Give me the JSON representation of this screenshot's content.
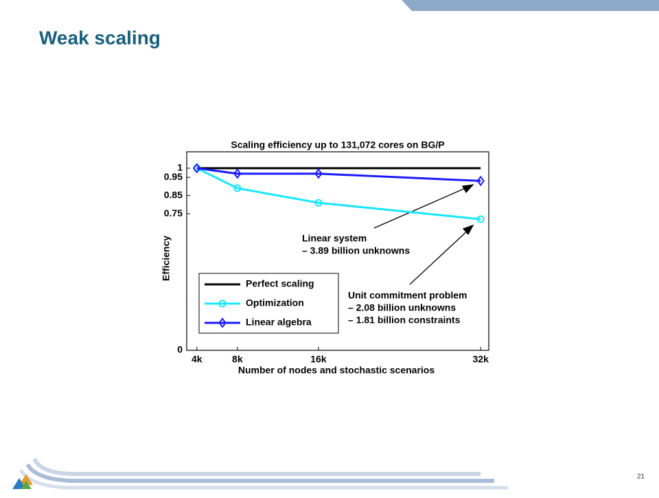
{
  "slide": {
    "title": "Weak scaling",
    "page_number": "21"
  },
  "chart_data": {
    "type": "line",
    "title": "Scaling efficiency up to 131,072 cores on BG/P",
    "xlabel": "Number of nodes and stochastic scenarios",
    "ylabel": "Efficiency",
    "x": [
      4,
      8,
      16,
      32
    ],
    "series": [
      {
        "name": "Perfect scaling",
        "color": "#000000",
        "marker": "none",
        "values": [
          1,
          1,
          1,
          1
        ]
      },
      {
        "name": "Optimization",
        "color": "#19e6ff",
        "marker": "circle",
        "values": [
          1,
          0.89,
          0.81,
          0.72
        ]
      },
      {
        "name": "Linear algebra",
        "color": "#1a1aff",
        "marker": "diamond",
        "values": [
          1,
          0.97,
          0.97,
          0.93
        ]
      }
    ],
    "xlim": [
      3,
      32.8
    ],
    "ylim": [
      0,
      1.09
    ],
    "xticks": [
      {
        "value": 4,
        "label": "4k"
      },
      {
        "value": 8,
        "label": "8k"
      },
      {
        "value": 16,
        "label": "16k"
      },
      {
        "value": 32,
        "label": "32k"
      }
    ],
    "yticks": [
      0,
      0.75,
      0.85,
      0.95,
      1
    ],
    "grid": false,
    "legend": "lower left",
    "annotations": [
      {
        "lines": [
          "Linear system",
          "– 3.89 billion unknowns"
        ]
      },
      {
        "lines": [
          "Unit commitment problem",
          "– 2.08 billion unknowns",
          "– 1.81 billion constraints"
        ]
      }
    ]
  }
}
